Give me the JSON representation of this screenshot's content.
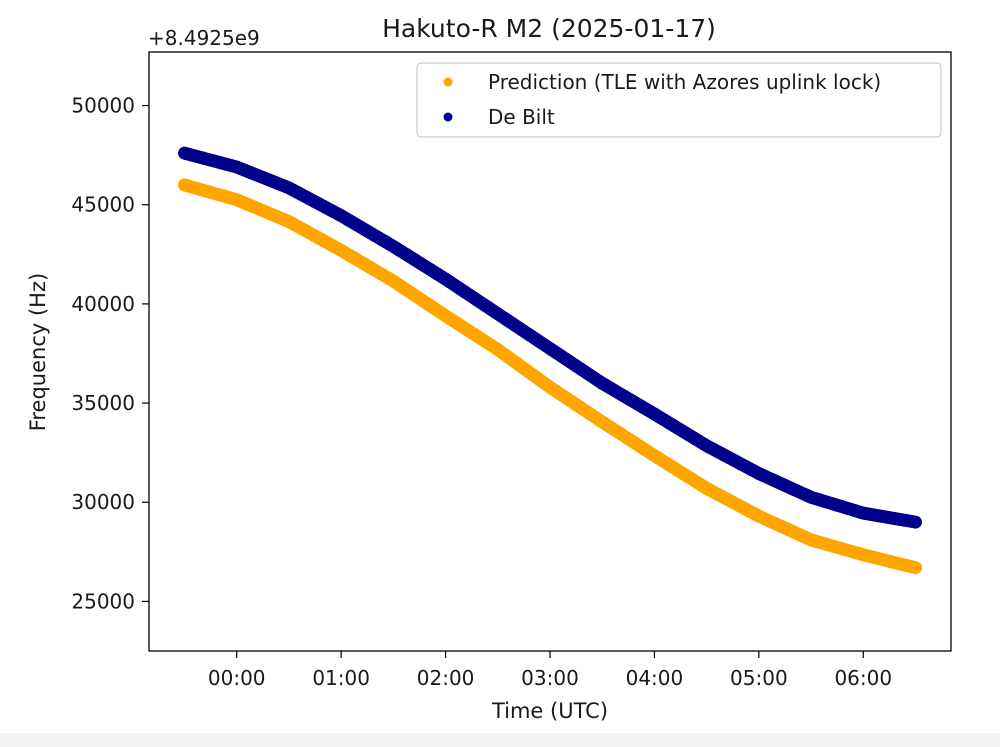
{
  "chart_data": {
    "type": "scatter",
    "title": "Hakuto-R M2 (2025-01-17)",
    "xlabel": "Time (UTC)",
    "ylabel": "Frequency (Hz)",
    "y_offset_label": "+8.4925e9",
    "x_ticks": [
      "00:00",
      "01:00",
      "02:00",
      "03:00",
      "04:00",
      "05:00",
      "06:00"
    ],
    "y_ticks": [
      25000,
      30000,
      35000,
      40000,
      45000,
      50000
    ],
    "xlim": [
      -0.84,
      6.84
    ],
    "ylim": [
      22500,
      52700
    ],
    "grid": false,
    "legend_position": "top-right",
    "series": [
      {
        "name": "Prediction (TLE with Azores uplink lock)",
        "color": "#ffa500",
        "points": [
          [
            -0.5,
            46000
          ],
          [
            0.0,
            45250
          ],
          [
            0.5,
            44150
          ],
          [
            1.0,
            42700
          ],
          [
            1.5,
            41150
          ],
          [
            2.0,
            39400
          ],
          [
            2.5,
            37700
          ],
          [
            3.0,
            35800
          ],
          [
            3.5,
            34050
          ],
          [
            4.0,
            32350
          ],
          [
            4.5,
            30700
          ],
          [
            5.0,
            29300
          ],
          [
            5.5,
            28100
          ],
          [
            6.0,
            27350
          ],
          [
            6.5,
            26700
          ]
        ]
      },
      {
        "name": "De Bilt",
        "color": "#00008b",
        "points": [
          [
            -0.5,
            47600
          ],
          [
            0.0,
            46900
          ],
          [
            0.5,
            45850
          ],
          [
            1.0,
            44450
          ],
          [
            1.5,
            42900
          ],
          [
            2.0,
            41250
          ],
          [
            2.5,
            39500
          ],
          [
            3.0,
            37750
          ],
          [
            3.5,
            36000
          ],
          [
            4.0,
            34450
          ],
          [
            4.5,
            32850
          ],
          [
            5.0,
            31450
          ],
          [
            5.5,
            30250
          ],
          [
            6.0,
            29450
          ],
          [
            6.5,
            29000
          ]
        ]
      }
    ]
  }
}
